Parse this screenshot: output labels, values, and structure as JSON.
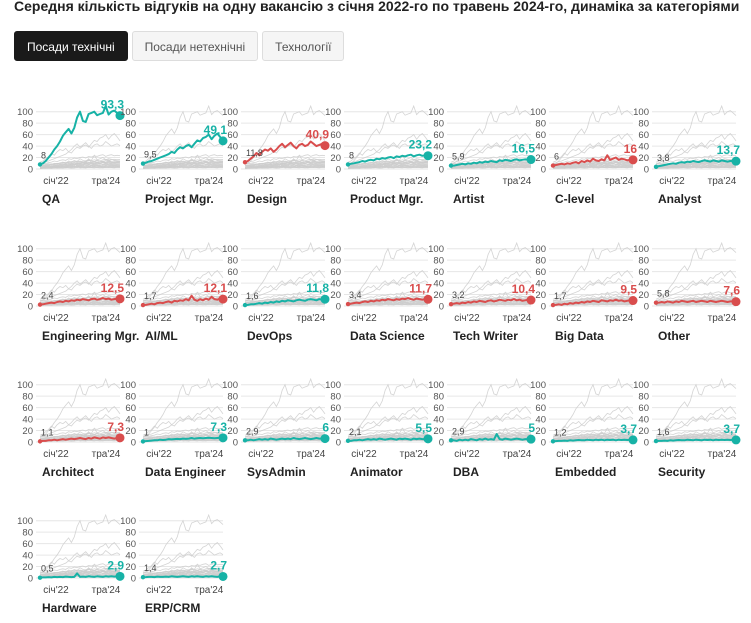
{
  "title": "Середня кількість відгуків на одну вакансію з січня 2022-го по травень 2024-го, динаміка за категоріями",
  "tabs": [
    {
      "label": "Посади технічні",
      "active": true
    },
    {
      "label": "Посади нетехнічні",
      "active": false
    },
    {
      "label": "Технології",
      "active": false
    }
  ],
  "colors": {
    "rising": "#17b2a6",
    "falling": "#d94d4d",
    "background_lines": "#cccccc",
    "grid": "#e6e6e6",
    "text": "#222222"
  },
  "chart_data": {
    "type": "line",
    "layout": "small-multiples",
    "x_tick_labels": [
      "січ'22",
      "тра'24"
    ],
    "y_ticks": [
      0,
      20,
      40,
      60,
      80,
      100
    ],
    "ylim": [
      0,
      110
    ],
    "panels": [
      {
        "name": "QA",
        "start": 8,
        "end": 93.3,
        "color": "teal",
        "values": [
          8,
          10,
          14,
          20,
          26,
          34,
          40,
          48,
          58,
          64,
          70,
          62,
          72,
          90,
          100,
          84,
          82,
          96,
          98,
          100,
          94,
          96,
          98,
          110,
          95,
          100,
          102,
          98,
          93.3
        ]
      },
      {
        "name": "Project Mgr.",
        "start": 9.5,
        "end": 49.1,
        "color": "teal",
        "values": [
          9.5,
          11,
          13,
          14,
          16,
          18,
          20,
          22,
          24,
          26,
          30,
          28,
          34,
          38,
          36,
          40,
          42,
          38,
          44,
          50,
          48,
          54,
          56,
          60,
          52,
          58,
          62,
          56,
          49.1
        ]
      },
      {
        "name": "Design",
        "start": 11.8,
        "end": 40.9,
        "color": "red",
        "values": [
          11.8,
          14,
          18,
          22,
          28,
          24,
          30,
          34,
          32,
          36,
          30,
          34,
          40,
          44,
          38,
          42,
          46,
          40,
          36,
          42,
          44,
          40,
          42,
          48,
          44,
          40,
          42,
          44,
          40.9
        ]
      },
      {
        "name": "Product Mgr.",
        "start": 8,
        "end": 23.2,
        "color": "teal",
        "values": [
          8,
          9,
          10,
          11,
          12,
          14,
          13,
          15,
          16,
          15,
          18,
          17,
          19,
          18,
          20,
          21,
          19,
          22,
          21,
          23,
          22,
          24,
          25,
          22,
          24,
          25,
          23,
          24,
          23.2
        ]
      },
      {
        "name": "Artist",
        "start": 5.9,
        "end": 16.5,
        "color": "teal",
        "values": [
          5.9,
          6,
          7,
          8,
          9,
          8,
          10,
          9,
          11,
          10,
          12,
          11,
          13,
          12,
          14,
          13,
          12,
          15,
          14,
          16,
          15,
          14,
          16,
          17,
          15,
          16,
          17,
          16,
          16.5
        ]
      },
      {
        "name": "C-level",
        "start": 6,
        "end": 16,
        "color": "red",
        "values": [
          6,
          7,
          8,
          9,
          8,
          10,
          9,
          11,
          12,
          10,
          14,
          12,
          15,
          13,
          18,
          15,
          14,
          17,
          15,
          24,
          16,
          18,
          20,
          16,
          18,
          17,
          15,
          16,
          16
        ]
      },
      {
        "name": "Analyst",
        "start": 3.8,
        "end": 13.7,
        "color": "teal",
        "values": [
          3.8,
          5,
          6,
          7,
          8,
          9,
          10,
          9,
          11,
          12,
          11,
          13,
          12,
          14,
          13,
          12,
          14,
          15,
          14,
          13,
          15,
          14,
          13,
          15,
          14,
          13,
          14,
          14,
          13.7
        ]
      },
      {
        "name": "Engineering Mgr.",
        "start": 2.4,
        "end": 12.5,
        "color": "red",
        "values": [
          2.4,
          3,
          4,
          5,
          6,
          5,
          7,
          8,
          7,
          9,
          8,
          10,
          9,
          11,
          10,
          12,
          11,
          10,
          12,
          13,
          11,
          12,
          14,
          12,
          13,
          11,
          12,
          13,
          12.5
        ]
      },
      {
        "name": "AI/ML",
        "start": 1.7,
        "end": 12.1,
        "color": "red",
        "values": [
          1.7,
          2,
          3,
          4,
          3,
          5,
          6,
          5,
          7,
          8,
          6,
          9,
          8,
          10,
          9,
          12,
          10,
          18,
          11,
          9,
          12,
          10,
          13,
          11,
          16,
          12,
          11,
          13,
          12.1
        ]
      },
      {
        "name": "DevOps",
        "start": 1.6,
        "end": 11.8,
        "color": "teal",
        "values": [
          1.6,
          2,
          3,
          3,
          4,
          5,
          4,
          6,
          5,
          7,
          6,
          8,
          7,
          9,
          8,
          10,
          9,
          8,
          10,
          11,
          10,
          9,
          11,
          12,
          11,
          10,
          12,
          11,
          11.8
        ]
      },
      {
        "name": "Data Science",
        "start": 3.4,
        "end": 11.7,
        "color": "red",
        "values": [
          3.4,
          4,
          5,
          6,
          5,
          7,
          8,
          7,
          9,
          8,
          10,
          9,
          11,
          10,
          12,
          11,
          10,
          12,
          11,
          13,
          12,
          14,
          12,
          11,
          13,
          12,
          11,
          12,
          11.7
        ]
      },
      {
        "name": "Tech Writer",
        "start": 3.2,
        "end": 10.4,
        "color": "red",
        "values": [
          3.2,
          4,
          5,
          4,
          6,
          5,
          7,
          6,
          8,
          7,
          9,
          8,
          7,
          9,
          10,
          8,
          9,
          11,
          10,
          9,
          11,
          10,
          12,
          10,
          11,
          9,
          10,
          11,
          10.4
        ]
      },
      {
        "name": "Big Data",
        "start": 1.7,
        "end": 9.5,
        "color": "red",
        "values": [
          1.7,
          2,
          3,
          2,
          4,
          3,
          5,
          4,
          6,
          5,
          7,
          6,
          8,
          7,
          9,
          8,
          7,
          10,
          9,
          8,
          10,
          9,
          11,
          9,
          10,
          8,
          9,
          10,
          9.5
        ]
      },
      {
        "name": "Other",
        "start": 5.8,
        "end": 7.6,
        "color": "red",
        "values": [
          5.8,
          6,
          7,
          6,
          8,
          7,
          6,
          8,
          7,
          9,
          8,
          7,
          8,
          9,
          7,
          8,
          9,
          8,
          7,
          9,
          8,
          7,
          8,
          9,
          8,
          7,
          8,
          8,
          7.6
        ]
      },
      {
        "name": "Architect",
        "start": 1.1,
        "end": 7.3,
        "color": "red",
        "values": [
          1.1,
          2,
          2,
          3,
          3,
          4,
          3,
          4,
          5,
          4,
          5,
          6,
          5,
          6,
          7,
          6,
          5,
          7,
          6,
          8,
          7,
          6,
          8,
          7,
          8,
          7,
          6,
          7,
          7.3
        ]
      },
      {
        "name": "Data Engineer",
        "start": 1,
        "end": 7.3,
        "color": "teal",
        "values": [
          1,
          1.5,
          2,
          2.5,
          3,
          3,
          4,
          3.5,
          4,
          5,
          4.5,
          5,
          5.5,
          5,
          6,
          5.5,
          6,
          7,
          6,
          6.5,
          7,
          6.5,
          7,
          7.5,
          7,
          6.5,
          7,
          7.5,
          7.3
        ]
      },
      {
        "name": "SysAdmin",
        "start": 2.9,
        "end": 6,
        "color": "teal",
        "values": [
          2.9,
          3,
          4,
          3,
          4,
          5,
          4,
          5,
          4,
          6,
          5,
          4,
          5,
          6,
          5,
          6,
          5,
          7,
          6,
          5,
          6,
          7,
          6,
          5,
          6,
          7,
          6,
          6,
          6
        ]
      },
      {
        "name": "Animator",
        "start": 2.1,
        "end": 5.5,
        "color": "teal",
        "values": [
          2.1,
          2,
          3,
          3,
          4,
          3,
          4,
          5,
          4,
          5,
          4,
          6,
          5,
          4,
          5,
          6,
          5,
          4,
          6,
          5,
          6,
          5,
          4,
          6,
          5,
          6,
          5,
          5,
          5.5
        ]
      },
      {
        "name": "DBA",
        "start": 2.9,
        "end": 5,
        "color": "teal",
        "values": [
          2.9,
          3,
          2,
          4,
          3,
          4,
          3,
          5,
          4,
          3,
          5,
          4,
          6,
          4,
          5,
          4,
          14,
          5,
          4,
          6,
          5,
          4,
          5,
          6,
          5,
          4,
          5,
          5,
          5
        ]
      },
      {
        "name": "Embedded",
        "start": 1.2,
        "end": 3.7,
        "color": "teal",
        "values": [
          1.2,
          1.5,
          2,
          2,
          2.5,
          2,
          3,
          2.5,
          3,
          3.5,
          3,
          3,
          4,
          3.5,
          3,
          4,
          3.5,
          4,
          3,
          4,
          3.5,
          4,
          3,
          4,
          3.5,
          4,
          3.5,
          4,
          3.7
        ]
      },
      {
        "name": "Security",
        "start": 1.6,
        "end": 3.7,
        "color": "teal",
        "values": [
          1.6,
          2,
          2,
          2.5,
          2,
          3,
          2.5,
          3,
          3.5,
          3,
          3,
          4,
          3.5,
          3,
          4,
          3.5,
          3,
          4,
          3.5,
          4,
          3,
          4,
          3.5,
          4,
          3.5,
          4,
          3.5,
          4,
          3.7
        ]
      },
      {
        "name": "Hardware",
        "start": 0.5,
        "end": 2.9,
        "color": "teal",
        "values": [
          0.5,
          1,
          1,
          1.5,
          1,
          2,
          1.5,
          2,
          1.5,
          2.5,
          2,
          1.5,
          2,
          8,
          2,
          2.5,
          2,
          3,
          2.5,
          2,
          3,
          2.5,
          2,
          3,
          2.5,
          3,
          2.5,
          3,
          2.9
        ]
      },
      {
        "name": "ERP/CRM",
        "start": 1.4,
        "end": 2.7,
        "color": "teal",
        "values": [
          1.4,
          1.5,
          2,
          2,
          1.5,
          2.5,
          2,
          2,
          2.5,
          2,
          3,
          2.5,
          2,
          2.5,
          3,
          2.5,
          2,
          3,
          2.5,
          3,
          2.5,
          2,
          3,
          2.5,
          3,
          2.5,
          2,
          3,
          2.7
        ]
      }
    ]
  }
}
